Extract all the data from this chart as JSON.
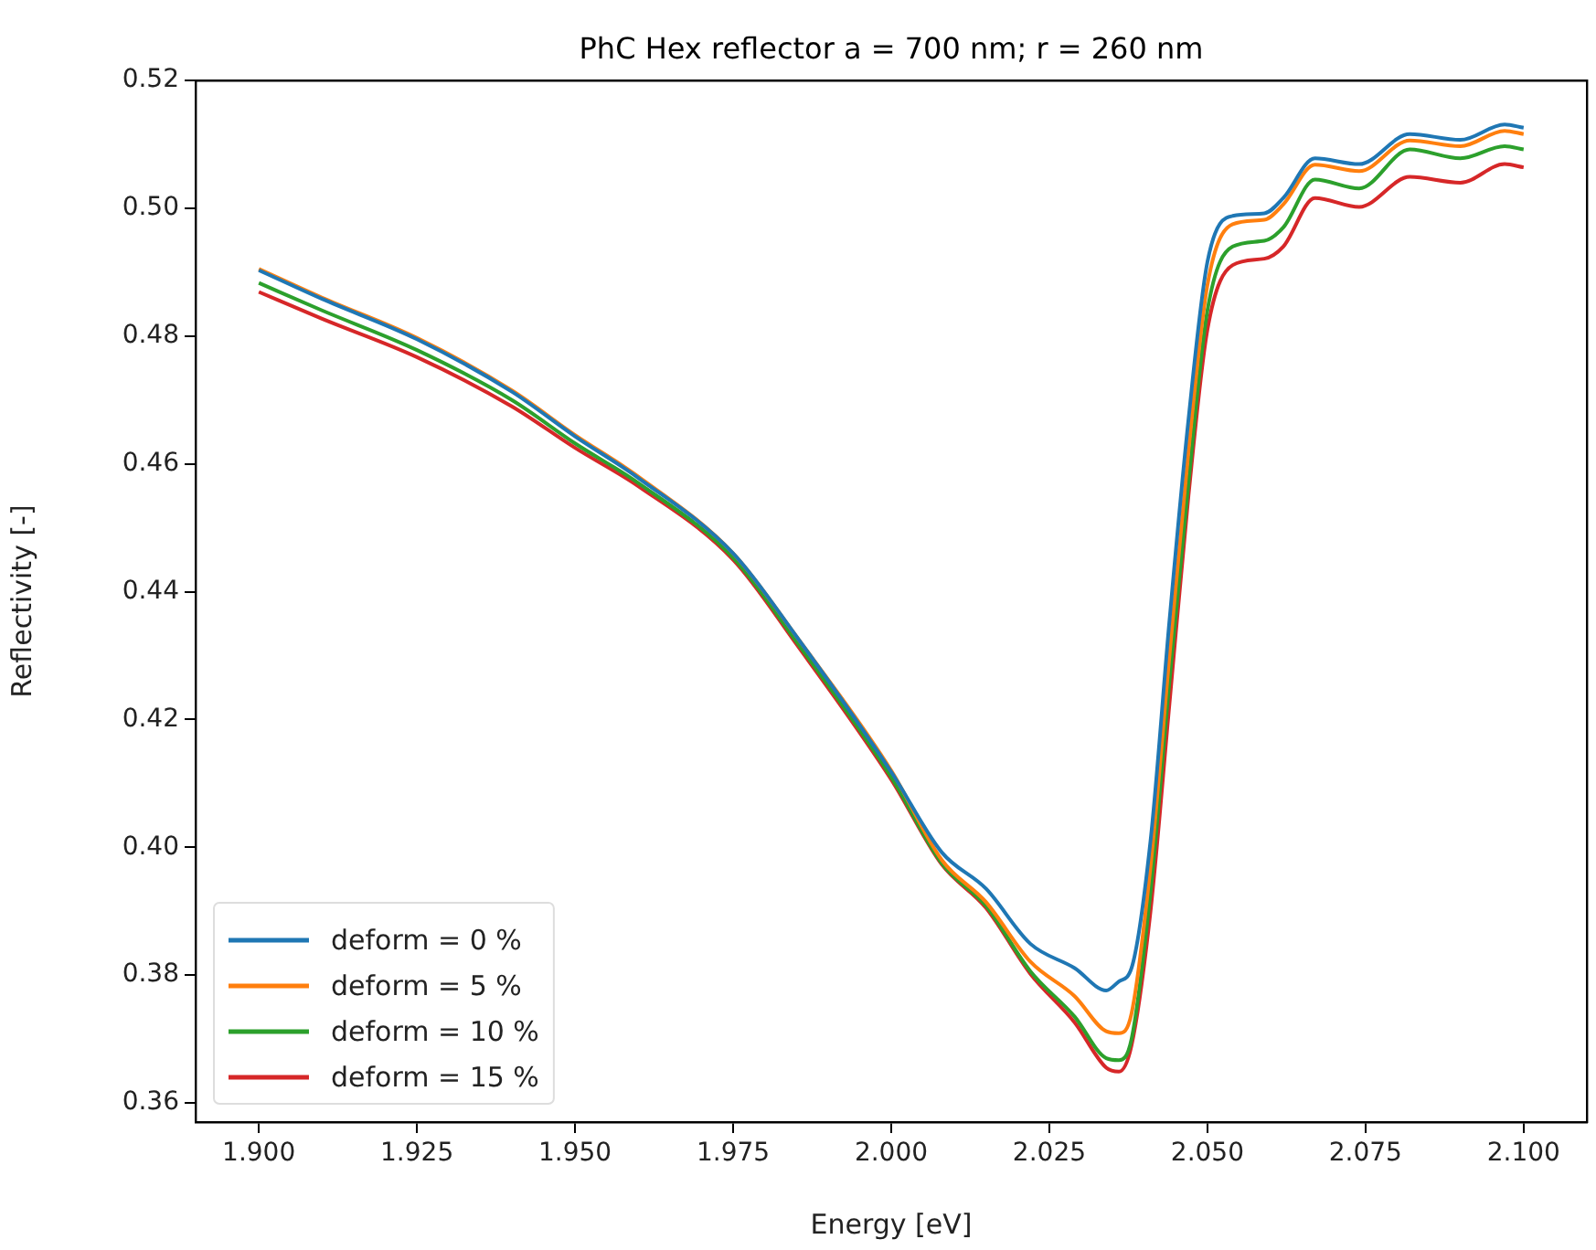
{
  "chart_data": {
    "type": "line",
    "title": "PhC Hex reflector a = 700 nm; r = 260 nm",
    "xlabel": "Energy [eV]",
    "ylabel": "Reflectivity [-]",
    "x": [
      1.9,
      1.91,
      1.925,
      1.94,
      1.95,
      1.96,
      1.975,
      1.985,
      2.0,
      2.008,
      2.015,
      2.022,
      2.029,
      2.034,
      2.036,
      2.038,
      2.041,
      2.044,
      2.047,
      2.05,
      2.054,
      2.059,
      2.062,
      2.067,
      2.074,
      2.082,
      2.09,
      2.097,
      2.1
    ],
    "series": [
      {
        "name": "deform = 0 %",
        "color": "#1f77b4",
        "values": [
          0.4903,
          0.4858,
          0.4795,
          0.4713,
          0.4643,
          0.4578,
          0.446,
          0.433,
          0.4118,
          0.3992,
          0.3935,
          0.3849,
          0.3811,
          0.3776,
          0.379,
          0.3811,
          0.401,
          0.4355,
          0.4669,
          0.4916,
          0.4988,
          0.4992,
          0.5016,
          0.5078,
          0.5069,
          0.5116,
          0.5107,
          0.5131,
          0.5126
        ]
      },
      {
        "name": "deform = 5 %",
        "color": "#ff7f0e",
        "values": [
          0.4905,
          0.486,
          0.4797,
          0.4715,
          0.4645,
          0.458,
          0.446,
          0.433,
          0.412,
          0.398,
          0.3914,
          0.3821,
          0.3767,
          0.3712,
          0.3709,
          0.374,
          0.397,
          0.43,
          0.462,
          0.488,
          0.4975,
          0.4982,
          0.5006,
          0.5068,
          0.5058,
          0.5106,
          0.5097,
          0.5121,
          0.5116
        ]
      },
      {
        "name": "deform = 10 %",
        "color": "#2ca02c",
        "values": [
          0.4883,
          0.484,
          0.4778,
          0.47,
          0.4632,
          0.457,
          0.4453,
          0.4322,
          0.411,
          0.3975,
          0.3908,
          0.3806,
          0.3735,
          0.367,
          0.3667,
          0.37,
          0.393,
          0.426,
          0.457,
          0.484,
          0.494,
          0.4949,
          0.497,
          0.5045,
          0.5031,
          0.5092,
          0.5078,
          0.5097,
          0.5092
        ]
      },
      {
        "name": "deform = 15 %",
        "color": "#d62728",
        "values": [
          0.4869,
          0.4827,
          0.4767,
          0.469,
          0.4625,
          0.4565,
          0.445,
          0.4318,
          0.4106,
          0.3973,
          0.3905,
          0.3802,
          0.3726,
          0.3655,
          0.3649,
          0.369,
          0.39,
          0.4225,
          0.455,
          0.481,
          0.4911,
          0.4921,
          0.494,
          0.5016,
          0.5002,
          0.5049,
          0.504,
          0.5069,
          0.5064
        ]
      }
    ],
    "xlim": [
      1.89,
      2.11
    ],
    "ylim": [
      0.357,
      0.52
    ],
    "xticks": [
      {
        "value": 1.9,
        "label": "1.900"
      },
      {
        "value": 1.925,
        "label": "1.925"
      },
      {
        "value": 1.95,
        "label": "1.950"
      },
      {
        "value": 1.975,
        "label": "1.975"
      },
      {
        "value": 2.0,
        "label": "2.000"
      },
      {
        "value": 2.025,
        "label": "2.025"
      },
      {
        "value": 2.05,
        "label": "2.050"
      },
      {
        "value": 2.075,
        "label": "2.075"
      },
      {
        "value": 2.1,
        "label": "2.100"
      }
    ],
    "yticks": [
      {
        "value": 0.36,
        "label": "0.36"
      },
      {
        "value": 0.38,
        "label": "0.38"
      },
      {
        "value": 0.4,
        "label": "0.40"
      },
      {
        "value": 0.42,
        "label": "0.42"
      },
      {
        "value": 0.44,
        "label": "0.44"
      },
      {
        "value": 0.46,
        "label": "0.46"
      },
      {
        "value": 0.48,
        "label": "0.48"
      },
      {
        "value": 0.5,
        "label": "0.50"
      },
      {
        "value": 0.52,
        "label": "0.52"
      }
    ],
    "grid": false,
    "legend": "bottom left",
    "marker": "none",
    "line_style": "solid"
  }
}
